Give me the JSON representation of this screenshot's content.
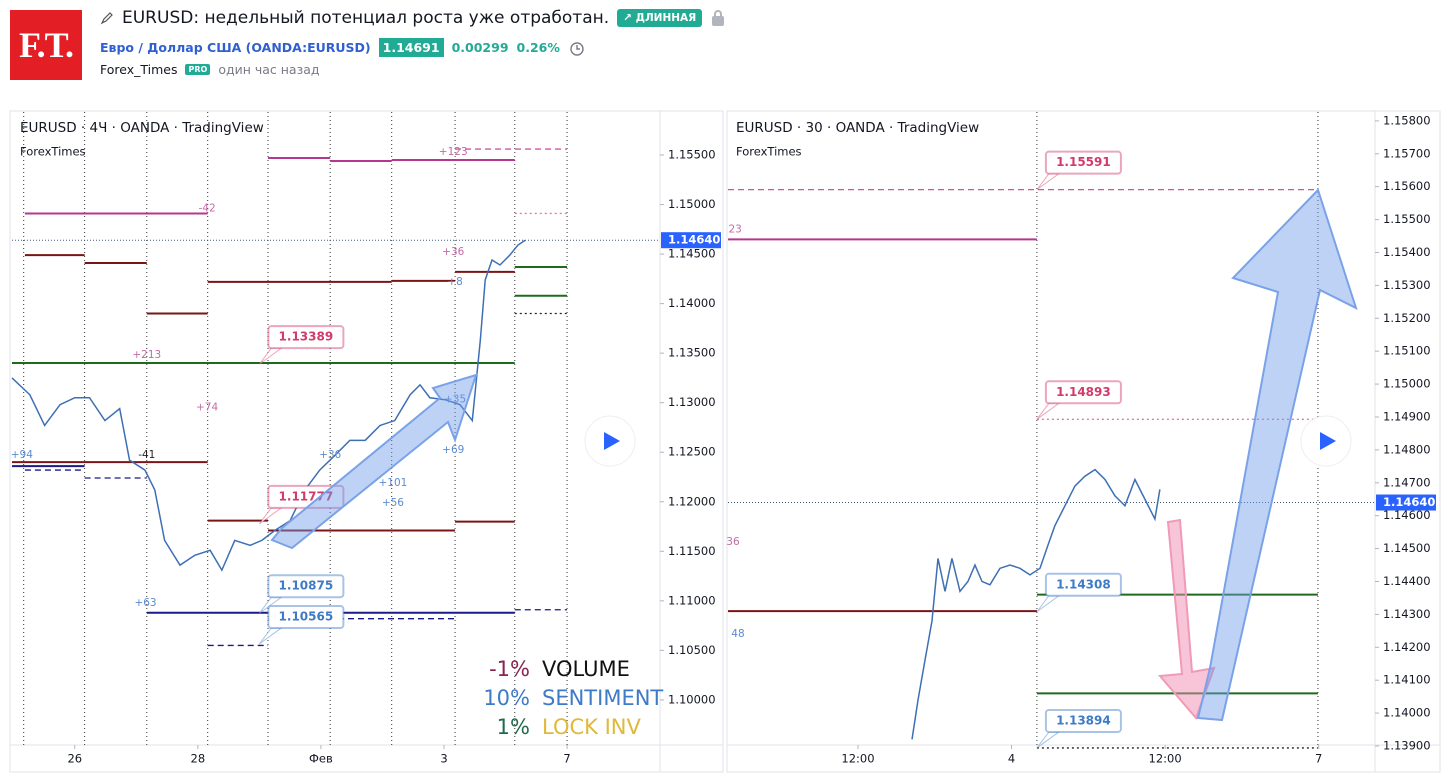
{
  "header": {
    "logo": "F.T.",
    "title": "EURUSD: недельный потенциал роста уже отработан.",
    "badge": "↗ ДЛИННАЯ",
    "symbol": "Евро / Доллар США (OANDA:EURUSD)",
    "price": "1.14691",
    "change": "0.00299",
    "change_pct": "0.26%",
    "author": "Forex_Times",
    "author_badge": "PRO",
    "time": "один час назад"
  },
  "chart_data": [
    {
      "type": "line",
      "title": "EURUSD · 4Ч · OANDA · TradingView",
      "subtitle": "ForexTimes",
      "xlim": [
        -1.02,
        9.51
      ],
      "ylim": [
        1.09545,
        1.15934
      ],
      "xticks": [
        {
          "value": 0,
          "label": "26"
        },
        {
          "value": 2,
          "label": "28"
        },
        {
          "value": 4,
          "label": "Фев"
        },
        {
          "value": 6,
          "label": "3"
        },
        {
          "value": 8,
          "label": "7"
        }
      ],
      "yticks": [
        {
          "value": 1.155,
          "label": "1.15500"
        },
        {
          "value": 1.15,
          "label": "1.15000"
        },
        {
          "value": 1.145,
          "label": "1.14500"
        },
        {
          "value": 1.14,
          "label": "1.14000"
        },
        {
          "value": 1.135,
          "label": "1.13500"
        },
        {
          "value": 1.13,
          "label": "1.13000"
        },
        {
          "value": 1.125,
          "label": "1.12500"
        },
        {
          "value": 1.12,
          "label": "1.12000"
        },
        {
          "value": 1.115,
          "label": "1.11500"
        },
        {
          "value": 1.11,
          "label": "1.11000"
        },
        {
          "value": 1.105,
          "label": "1.10500"
        },
        {
          "value": 1.1,
          "label": "1.10000"
        }
      ],
      "separators": [
        -0.83,
        0.16,
        1.17,
        2.16,
        3.14,
        4.15,
        5.15,
        6.18,
        7.15,
        8.0
      ],
      "current": {
        "value": 1.1464,
        "label": "1.14640"
      },
      "x": [
        -1.02,
        -0.73,
        -0.49,
        -0.24,
        0,
        0.24,
        0.49,
        0.73,
        0.89,
        1.14,
        1.3,
        1.46,
        1.71,
        1.95,
        2.2,
        2.39,
        2.6,
        2.85,
        3.04,
        3.25,
        3.5,
        3.74,
        3.98,
        4.23,
        4.47,
        4.72,
        4.96,
        5.2,
        5.45,
        5.61,
        5.77,
        6.02,
        6.26,
        6.46,
        6.59,
        6.67,
        6.78,
        6.91,
        7.07,
        7.2,
        7.32
      ],
      "series": [
        {
          "color": "#3d6fb5",
          "values": [
            1.1325,
            1.1308,
            1.1277,
            1.1298,
            1.1305,
            1.1305,
            1.1282,
            1.1294,
            1.1242,
            1.1232,
            1.1212,
            1.1161,
            1.1136,
            1.1146,
            1.1151,
            1.1131,
            1.1161,
            1.1156,
            1.1161,
            1.1171,
            1.1181,
            1.1212,
            1.1232,
            1.1247,
            1.1262,
            1.1262,
            1.1277,
            1.1282,
            1.1308,
            1.1318,
            1.1305,
            1.1303,
            1.1298,
            1.1282,
            1.1363,
            1.1424,
            1.1444,
            1.1439,
            1.1449,
            1.1459,
            1.1464
          ]
        }
      ],
      "levels": [
        {
          "price": 1.1491,
          "from": -0.81,
          "to": 2.16,
          "color": "#b5388f",
          "style": "solid"
        },
        {
          "price": 1.1547,
          "from": 3.14,
          "to": 4.15,
          "color": "#b5388f",
          "style": "solid"
        },
        {
          "price": 1.1544,
          "from": 4.15,
          "to": 5.15,
          "color": "#b5388f",
          "style": "solid"
        },
        {
          "price": 1.1545,
          "from": 5.15,
          "to": 7.15,
          "color": "#b5388f",
          "style": "solid"
        },
        {
          "price": 1.1556,
          "from": 6.18,
          "to": 8.0,
          "color": "#d0559f",
          "style": "dashed"
        },
        {
          "price": 1.1491,
          "from": 7.15,
          "to": 8.0,
          "color": "#e57aa8",
          "style": "dotted"
        },
        {
          "price": 1.1449,
          "from": -0.81,
          "to": 0.16,
          "color": "#7b1416",
          "style": "solid"
        },
        {
          "price": 1.1441,
          "from": 0.16,
          "to": 1.17,
          "color": "#7b1416",
          "style": "solid"
        },
        {
          "price": 1.139,
          "from": 1.17,
          "to": 2.16,
          "color": "#7b1416",
          "style": "solid"
        },
        {
          "price": 1.1422,
          "from": 2.16,
          "to": 5.15,
          "color": "#7b1416",
          "style": "solid"
        },
        {
          "price": 1.1423,
          "from": 5.15,
          "to": 6.18,
          "color": "#7b1416",
          "style": "solid"
        },
        {
          "price": 1.1432,
          "from": 6.18,
          "to": 7.15,
          "color": "#7b1416",
          "style": "solid"
        },
        {
          "price": 1.134,
          "from": -1.02,
          "to": 7.15,
          "color": "#1e6b1e",
          "style": "solid"
        },
        {
          "price": 1.1437,
          "from": 7.15,
          "to": 8.0,
          "color": "#1e6b1e",
          "style": "solid"
        },
        {
          "price": 1.1408,
          "from": 7.15,
          "to": 8.0,
          "color": "#1e6b1e",
          "style": "solid"
        },
        {
          "price": 1.139,
          "from": 7.15,
          "to": 8.0,
          "color": "#222222",
          "style": "dotted"
        },
        {
          "price": 1.124,
          "from": -1.02,
          "to": 2.16,
          "color": "#7b1416",
          "style": "solid"
        },
        {
          "price": 1.1236,
          "from": -1.02,
          "to": 0.16,
          "color": "#1a1a8a",
          "style": "solid"
        },
        {
          "price": 1.1232,
          "from": -0.81,
          "to": 0.16,
          "color": "#1a1a8a",
          "style": "dashed"
        },
        {
          "price": 1.1224,
          "from": 0.16,
          "to": 1.17,
          "color": "#1a1a8a",
          "style": "dashed"
        },
        {
          "price": 1.1181,
          "from": 2.16,
          "to": 3.14,
          "color": "#7b1416",
          "style": "solid"
        },
        {
          "price": 1.1171,
          "from": 3.14,
          "to": 6.18,
          "color": "#7b1416",
          "style": "solid"
        },
        {
          "price": 1.118,
          "from": 6.18,
          "to": 7.15,
          "color": "#7b1416",
          "style": "solid"
        },
        {
          "price": 1.1088,
          "from": 1.17,
          "to": 7.15,
          "color": "#1a1a8a",
          "style": "solid"
        },
        {
          "price": 1.1091,
          "from": 7.15,
          "to": 8.0,
          "color": "#1a1a8a",
          "style": "dashed"
        },
        {
          "price": 1.1055,
          "from": 2.16,
          "to": 3.14,
          "color": "#1a1a8a",
          "style": "dashed"
        },
        {
          "price": 1.1082,
          "from": 3.14,
          "to": 6.18,
          "color": "#1a1a8a",
          "style": "dashed"
        }
      ],
      "annotations": [
        {
          "text": "+123",
          "x": 6.15,
          "y": 1.1553,
          "color": "#c26ba6"
        },
        {
          "text": "-42",
          "x": 2.15,
          "y": 1.1496,
          "color": "#c26ba6"
        },
        {
          "text": "+213",
          "x": 1.17,
          "y": 1.1348,
          "color": "#c26ba6"
        },
        {
          "text": "+74",
          "x": 2.15,
          "y": 1.1295,
          "color": "#c26ba6"
        },
        {
          "text": "+94",
          "x": -0.86,
          "y": 1.1247,
          "color": "#5b8ccf"
        },
        {
          "text": "-41",
          "x": 1.17,
          "y": 1.1247,
          "color": "#222222"
        },
        {
          "text": "+36",
          "x": 4.15,
          "y": 1.1247,
          "color": "#5b8ccf"
        },
        {
          "text": "+101",
          "x": 5.17,
          "y": 1.1219,
          "color": "#5b8ccf"
        },
        {
          "text": "+56",
          "x": 5.17,
          "y": 1.1199,
          "color": "#5b8ccf"
        },
        {
          "text": "+63",
          "x": 1.15,
          "y": 1.1098,
          "color": "#5b8ccf"
        },
        {
          "text": "+69",
          "x": 6.15,
          "y": 1.1252,
          "color": "#5b8ccf"
        },
        {
          "text": "+35",
          "x": 6.18,
          "y": 1.1303,
          "color": "#5b8ccf"
        },
        {
          "text": "+36",
          "x": 6.15,
          "y": 1.1452,
          "color": "#c26ba6"
        },
        {
          "text": "+8",
          "x": 6.18,
          "y": 1.1422,
          "color": "#5b8ccf"
        }
      ],
      "callouts": [
        {
          "label": "1.13389",
          "value": 1.13389,
          "x": 3.0,
          "color": "#d23a6a"
        },
        {
          "label": "1.11777",
          "value": 1.11777,
          "x": 3.0,
          "color": "#d23a6a"
        },
        {
          "label": "1.10875",
          "value": 1.10875,
          "x": 3.0,
          "color": "#3d7ac7"
        },
        {
          "label": "1.10565",
          "value": 1.10565,
          "x": 3.0,
          "color": "#3d7ac7"
        }
      ],
      "legend": [
        {
          "value": "-1%",
          "name": "VOLUME",
          "value_color": "#8b2252",
          "name_color": "#111111"
        },
        {
          "value": "10%",
          "name": "SENTIMENT",
          "value_color": "#3d7ac7",
          "name_color": "#3d7ac7"
        },
        {
          "value": "1%",
          "name": "LOCK INV",
          "value_color": "#1e6b4e",
          "name_color": "#e0b83a"
        }
      ]
    },
    {
      "type": "line",
      "title": "EURUSD · 30 · OANDA · TradingView",
      "subtitle": "ForexTimes",
      "xlim": [
        -10.16,
        40.4
      ],
      "ylim": [
        1.13903,
        1.15827
      ],
      "xticks": [
        {
          "value": 0,
          "label": "12:00"
        },
        {
          "value": 12,
          "label": "4"
        },
        {
          "value": 24,
          "label": "12:00"
        },
        {
          "value": 36,
          "label": "7"
        }
      ],
      "yticks": [
        {
          "value": 1.158,
          "label": "1.15800"
        },
        {
          "value": 1.157,
          "label": "1.15700"
        },
        {
          "value": 1.156,
          "label": "1.15600"
        },
        {
          "value": 1.155,
          "label": "1.15500"
        },
        {
          "value": 1.154,
          "label": "1.15400"
        },
        {
          "value": 1.153,
          "label": "1.15300"
        },
        {
          "value": 1.152,
          "label": "1.15200"
        },
        {
          "value": 1.151,
          "label": "1.15100"
        },
        {
          "value": 1.15,
          "label": "1.15000"
        },
        {
          "value": 1.149,
          "label": "1.14900"
        },
        {
          "value": 1.148,
          "label": "1.14800"
        },
        {
          "value": 1.147,
          "label": "1.14700"
        },
        {
          "value": 1.146,
          "label": "1.14600"
        },
        {
          "value": 1.145,
          "label": "1.14500"
        },
        {
          "value": 1.144,
          "label": "1.14400"
        },
        {
          "value": 1.143,
          "label": "1.14300"
        },
        {
          "value": 1.142,
          "label": "1.14200"
        },
        {
          "value": 1.141,
          "label": "1.14100"
        },
        {
          "value": 1.14,
          "label": "1.14000"
        },
        {
          "value": 1.139,
          "label": "1.13900"
        }
      ],
      "separators": [
        13.98,
        35.94
      ],
      "current": {
        "value": 1.1464,
        "label": "1.14640"
      },
      "x": [
        4.22,
        4.69,
        5.23,
        5.78,
        6.25,
        6.8,
        7.34,
        7.97,
        8.59,
        9.14,
        9.69,
        10.31,
        11.09,
        11.88,
        12.66,
        13.44,
        14.22,
        14.84,
        15.39,
        16.17,
        16.95,
        17.73,
        18.52,
        19.3,
        20.08,
        20.86,
        21.64,
        22.42,
        23.2,
        23.59
      ],
      "series": [
        {
          "color": "#3d6fb5",
          "values": [
            1.1392,
            1.1404,
            1.1416,
            1.1428,
            1.1447,
            1.1437,
            1.1447,
            1.1437,
            1.144,
            1.1445,
            1.144,
            1.1439,
            1.1444,
            1.1445,
            1.1444,
            1.1442,
            1.1444,
            1.1451,
            1.1457,
            1.1463,
            1.1469,
            1.1472,
            1.1474,
            1.1471,
            1.1466,
            1.1463,
            1.1471,
            1.1465,
            1.1459,
            1.1468
          ]
        }
      ],
      "levels": [
        {
          "price": 1.15591,
          "from": -10.16,
          "to": 35.94,
          "color": "#d0559f",
          "style": "dashed"
        },
        {
          "price": 1.1544,
          "from": -10.16,
          "to": 13.98,
          "color": "#b5388f",
          "style": "solid"
        },
        {
          "price": 1.14893,
          "from": 13.98,
          "to": 35.94,
          "color": "#e57aa8",
          "style": "dotted"
        },
        {
          "price": 1.1431,
          "from": -10.16,
          "to": 13.98,
          "color": "#7b1416",
          "style": "solid"
        },
        {
          "price": 1.1436,
          "from": 13.98,
          "to": 35.94,
          "color": "#1e6b1e",
          "style": "solid"
        },
        {
          "price": 1.1406,
          "from": 13.98,
          "to": 35.94,
          "color": "#1e6b1e",
          "style": "solid"
        },
        {
          "price": 1.13894,
          "from": 13.98,
          "to": 35.94,
          "color": "#222222",
          "style": "dotted"
        }
      ],
      "annotations": [
        {
          "text": "23",
          "x": -9.6,
          "y": 1.1547,
          "color": "#c26ba6"
        },
        {
          "text": "36",
          "x": -9.77,
          "y": 1.1452,
          "color": "#c26ba6"
        },
        {
          "text": "48",
          "x": -9.38,
          "y": 1.1424,
          "color": "#5b8ccf"
        }
      ],
      "callouts": [
        {
          "label": "1.15591",
          "value": 1.15591,
          "x": 13.98,
          "color": "#d23a6a"
        },
        {
          "label": "1.14893",
          "value": 1.14893,
          "x": 13.98,
          "color": "#d23a6a"
        },
        {
          "label": "1.14308",
          "value": 1.14308,
          "x": 13.98,
          "color": "#3d7ac7"
        },
        {
          "label": "1.13894",
          "value": 1.13894,
          "x": 13.98,
          "color": "#3d7ac7"
        }
      ]
    }
  ]
}
